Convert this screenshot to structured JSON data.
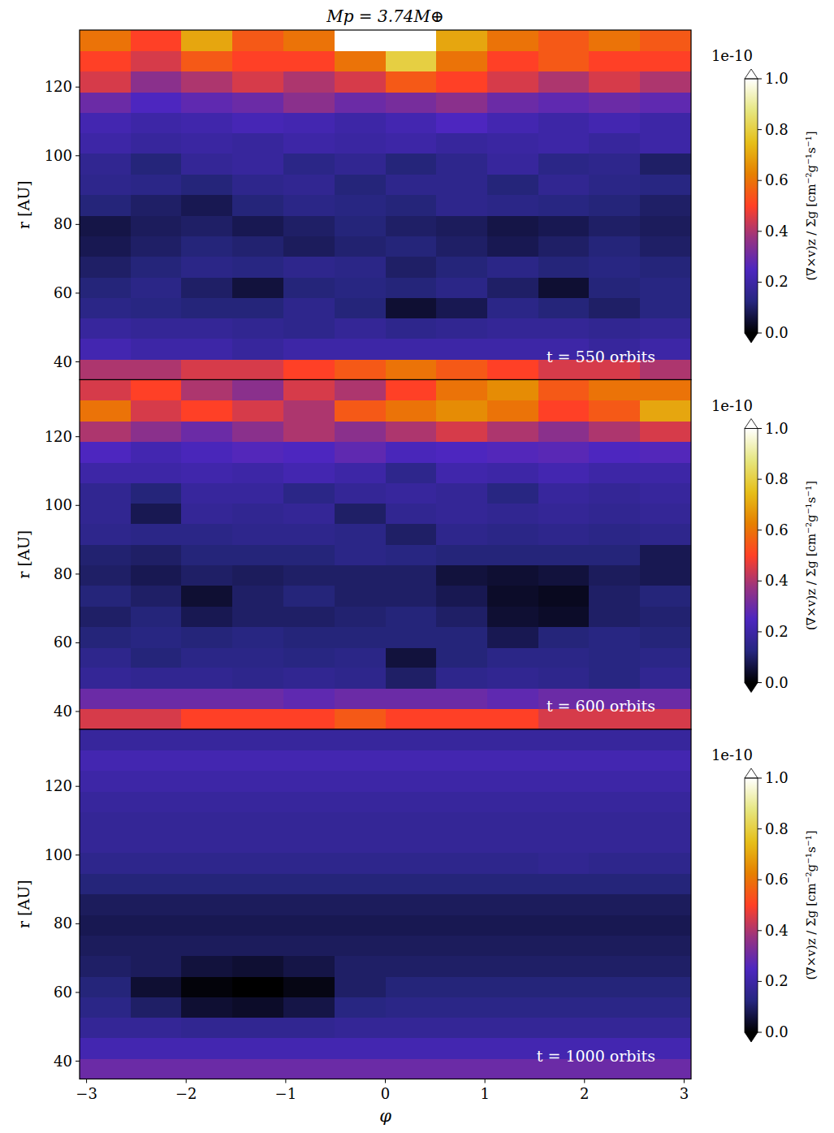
{
  "chart_data": [
    {
      "type": "heatmap",
      "title": "Mp = 3.74M⊕",
      "annotation": "t = 550 orbits",
      "y_label": "r [AU]",
      "tick_labels": "y",
      "xlim": [
        -3.07,
        3.07
      ],
      "ylim": [
        34.8,
        136.6
      ],
      "xticks": [
        -3,
        -2,
        -1,
        0,
        1,
        2,
        3
      ],
      "yticks": [
        40,
        60,
        80,
        100,
        120
      ],
      "x": [
        -2.814,
        -2.302,
        -1.791,
        -1.279,
        -0.768,
        -0.256,
        0.256,
        0.768,
        1.279,
        1.791,
        2.302,
        2.814
      ],
      "y": [
        37.8,
        43.8,
        49.8,
        55.8,
        61.7,
        67.7,
        73.7,
        79.7,
        85.7,
        91.7,
        97.7,
        103.7,
        109.7,
        115.6,
        121.6,
        127.6,
        133.6
      ],
      "cells": [
        [
          0.4,
          0.4,
          0.45,
          0.45,
          0.5,
          0.55,
          0.6,
          0.55,
          0.5,
          0.45,
          0.45,
          0.4
        ],
        [
          0.22,
          0.2,
          0.2,
          0.18,
          0.2,
          0.2,
          0.2,
          0.2,
          0.2,
          0.2,
          0.18,
          0.2
        ],
        [
          0.18,
          0.17,
          0.17,
          0.16,
          0.15,
          0.17,
          0.15,
          0.16,
          0.17,
          0.17,
          0.16,
          0.17
        ],
        [
          0.14,
          0.13,
          0.12,
          0.12,
          0.15,
          0.12,
          0.05,
          0.08,
          0.14,
          0.12,
          0.1,
          0.13
        ],
        [
          0.12,
          0.14,
          0.1,
          0.06,
          0.12,
          0.13,
          0.12,
          0.14,
          0.1,
          0.05,
          0.12,
          0.13
        ],
        [
          0.1,
          0.12,
          0.14,
          0.13,
          0.15,
          0.14,
          0.1,
          0.12,
          0.14,
          0.12,
          0.13,
          0.12
        ],
        [
          0.08,
          0.1,
          0.12,
          0.11,
          0.09,
          0.11,
          0.12,
          0.1,
          0.08,
          0.1,
          0.12,
          0.1
        ],
        [
          0.07,
          0.09,
          0.1,
          0.08,
          0.1,
          0.12,
          0.1,
          0.09,
          0.07,
          0.08,
          0.1,
          0.09
        ],
        [
          0.12,
          0.1,
          0.08,
          0.12,
          0.14,
          0.13,
          0.12,
          0.15,
          0.14,
          0.13,
          0.12,
          0.1
        ],
        [
          0.15,
          0.14,
          0.12,
          0.15,
          0.16,
          0.12,
          0.15,
          0.15,
          0.12,
          0.16,
          0.14,
          0.13
        ],
        [
          0.16,
          0.12,
          0.17,
          0.18,
          0.14,
          0.16,
          0.12,
          0.15,
          0.18,
          0.14,
          0.15,
          0.1
        ],
        [
          0.2,
          0.18,
          0.19,
          0.18,
          0.2,
          0.19,
          0.2,
          0.18,
          0.19,
          0.2,
          0.18,
          0.2
        ],
        [
          0.22,
          0.2,
          0.21,
          0.23,
          0.22,
          0.2,
          0.22,
          0.25,
          0.22,
          0.2,
          0.22,
          0.2
        ],
        [
          0.3,
          0.25,
          0.28,
          0.3,
          0.35,
          0.3,
          0.32,
          0.35,
          0.3,
          0.28,
          0.3,
          0.28
        ],
        [
          0.45,
          0.35,
          0.4,
          0.45,
          0.4,
          0.45,
          0.55,
          0.5,
          0.45,
          0.4,
          0.45,
          0.4
        ],
        [
          0.5,
          0.45,
          0.55,
          0.5,
          0.5,
          0.6,
          0.8,
          0.6,
          0.5,
          0.55,
          0.5,
          0.5
        ],
        [
          0.6,
          0.5,
          0.7,
          0.55,
          0.6,
          1.0,
          1.0,
          0.7,
          0.6,
          0.55,
          0.6,
          0.55
        ]
      ],
      "colorbar_range": [
        0,
        1
      ],
      "colorbar_ticks": [
        {
          "value": 0,
          "label": "0.0"
        },
        0.2,
        0.4,
        0.6,
        0.8,
        {
          "value": 1,
          "label": "1.0"
        }
      ],
      "colorbar_multiplier": "1e-10",
      "colorbar_label": "(∇×v)z / Σg [cm⁻²g⁻¹s⁻¹]"
    },
    {
      "type": "heatmap",
      "annotation": "t = 600 orbits",
      "y_label": "r [AU]",
      "tick_labels": "y",
      "xlim": [
        -3.07,
        3.07
      ],
      "ylim": [
        34.8,
        136.6
      ],
      "xticks": [
        -3,
        -2,
        -1,
        0,
        1,
        2,
        3
      ],
      "yticks": [
        40,
        60,
        80,
        100,
        120
      ],
      "x": [
        -2.814,
        -2.302,
        -1.791,
        -1.279,
        -0.768,
        -0.256,
        0.256,
        0.768,
        1.279,
        1.791,
        2.302,
        2.814
      ],
      "y": [
        37.8,
        43.8,
        49.8,
        55.8,
        61.7,
        67.7,
        73.7,
        79.7,
        85.7,
        91.7,
        97.7,
        103.7,
        109.7,
        115.6,
        121.6,
        127.6,
        133.6
      ],
      "cells": [
        [
          0.45,
          0.45,
          0.5,
          0.5,
          0.5,
          0.55,
          0.5,
          0.5,
          0.5,
          0.45,
          0.45,
          0.45
        ],
        [
          0.3,
          0.3,
          0.3,
          0.3,
          0.28,
          0.3,
          0.3,
          0.3,
          0.28,
          0.3,
          0.3,
          0.3
        ],
        [
          0.17,
          0.16,
          0.16,
          0.15,
          0.16,
          0.15,
          0.1,
          0.15,
          0.16,
          0.15,
          0.13,
          0.16
        ],
        [
          0.15,
          0.12,
          0.14,
          0.14,
          0.13,
          0.14,
          0.06,
          0.12,
          0.14,
          0.14,
          0.13,
          0.14
        ],
        [
          0.12,
          0.13,
          0.12,
          0.13,
          0.12,
          0.12,
          0.12,
          0.12,
          0.08,
          0.12,
          0.13,
          0.12
        ],
        [
          0.1,
          0.12,
          0.08,
          0.1,
          0.1,
          0.11,
          0.12,
          0.1,
          0.05,
          0.04,
          0.1,
          0.11
        ],
        [
          0.12,
          0.1,
          0.05,
          0.1,
          0.12,
          0.1,
          0.1,
          0.08,
          0.04,
          0.03,
          0.1,
          0.12
        ],
        [
          0.1,
          0.08,
          0.1,
          0.09,
          0.1,
          0.1,
          0.1,
          0.06,
          0.05,
          0.06,
          0.09,
          0.08
        ],
        [
          0.11,
          0.1,
          0.12,
          0.12,
          0.12,
          0.14,
          0.13,
          0.12,
          0.12,
          0.12,
          0.12,
          0.08
        ],
        [
          0.15,
          0.14,
          0.14,
          0.15,
          0.15,
          0.14,
          0.1,
          0.15,
          0.14,
          0.15,
          0.14,
          0.15
        ],
        [
          0.16,
          0.08,
          0.17,
          0.16,
          0.17,
          0.1,
          0.16,
          0.17,
          0.16,
          0.17,
          0.16,
          0.17
        ],
        [
          0.16,
          0.12,
          0.18,
          0.18,
          0.14,
          0.17,
          0.18,
          0.17,
          0.13,
          0.18,
          0.17,
          0.18
        ],
        [
          0.2,
          0.2,
          0.21,
          0.2,
          0.22,
          0.2,
          0.15,
          0.21,
          0.2,
          0.22,
          0.2,
          0.2
        ],
        [
          0.25,
          0.22,
          0.24,
          0.26,
          0.25,
          0.28,
          0.24,
          0.25,
          0.26,
          0.27,
          0.25,
          0.26
        ],
        [
          0.4,
          0.35,
          0.3,
          0.35,
          0.4,
          0.35,
          0.4,
          0.45,
          0.4,
          0.35,
          0.4,
          0.45
        ],
        [
          0.6,
          0.45,
          0.5,
          0.45,
          0.4,
          0.55,
          0.6,
          0.65,
          0.6,
          0.5,
          0.55,
          0.7
        ],
        [
          0.45,
          0.5,
          0.4,
          0.35,
          0.45,
          0.4,
          0.5,
          0.6,
          0.65,
          0.55,
          0.6,
          0.6
        ]
      ],
      "colorbar_range": [
        0,
        1
      ],
      "colorbar_ticks": [
        {
          "value": 0,
          "label": "0.0"
        },
        0.2,
        0.4,
        0.6,
        0.8,
        {
          "value": 1,
          "label": "1.0"
        }
      ],
      "colorbar_multiplier": "1e-10",
      "colorbar_label": "(∇×v)z / Σg [cm⁻²g⁻¹s⁻¹]"
    },
    {
      "type": "heatmap",
      "annotation": "t = 1000 orbits",
      "y_label": "r [AU]",
      "x_label": "φ",
      "tick_labels": true,
      "xlim": [
        -3.07,
        3.07
      ],
      "ylim": [
        34.8,
        136.6
      ],
      "xticks": [
        {
          "value": -3,
          "label": "−3"
        },
        {
          "value": -2,
          "label": "−2"
        },
        {
          "value": -1,
          "label": "−1"
        },
        0,
        1,
        2,
        3
      ],
      "yticks": [
        40,
        60,
        80,
        100,
        120
      ],
      "x": [
        -2.814,
        -2.302,
        -1.791,
        -1.279,
        -0.768,
        -0.256,
        0.256,
        0.768,
        1.279,
        1.791,
        2.302,
        2.814
      ],
      "y": [
        37.8,
        43.8,
        49.8,
        55.8,
        61.7,
        67.7,
        73.7,
        79.7,
        85.7,
        91.7,
        97.7,
        103.7,
        109.7,
        115.6,
        121.6,
        127.6,
        133.6
      ],
      "cells": [
        [
          0.3,
          0.3,
          0.3,
          0.3,
          0.3,
          0.3,
          0.3,
          0.3,
          0.3,
          0.3,
          0.3,
          0.3
        ],
        [
          0.22,
          0.22,
          0.22,
          0.22,
          0.22,
          0.22,
          0.22,
          0.22,
          0.22,
          0.22,
          0.22,
          0.22
        ],
        [
          0.17,
          0.17,
          0.16,
          0.16,
          0.16,
          0.17,
          0.17,
          0.17,
          0.17,
          0.17,
          0.17,
          0.17
        ],
        [
          0.14,
          0.1,
          0.05,
          0.04,
          0.07,
          0.13,
          0.14,
          0.14,
          0.14,
          0.14,
          0.14,
          0.14
        ],
        [
          0.12,
          0.05,
          0.01,
          0.0,
          0.02,
          0.1,
          0.12,
          0.12,
          0.12,
          0.12,
          0.12,
          0.12
        ],
        [
          0.1,
          0.09,
          0.06,
          0.05,
          0.07,
          0.1,
          0.1,
          0.1,
          0.1,
          0.1,
          0.1,
          0.1
        ],
        [
          0.09,
          0.09,
          0.09,
          0.09,
          0.09,
          0.09,
          0.09,
          0.09,
          0.09,
          0.09,
          0.09,
          0.09
        ],
        [
          0.08,
          0.08,
          0.08,
          0.08,
          0.08,
          0.08,
          0.08,
          0.08,
          0.08,
          0.08,
          0.08,
          0.08
        ],
        [
          0.09,
          0.09,
          0.09,
          0.09,
          0.09,
          0.09,
          0.09,
          0.09,
          0.09,
          0.09,
          0.09,
          0.09
        ],
        [
          0.12,
          0.12,
          0.12,
          0.12,
          0.12,
          0.12,
          0.12,
          0.12,
          0.12,
          0.12,
          0.12,
          0.12
        ],
        [
          0.15,
          0.15,
          0.15,
          0.15,
          0.15,
          0.15,
          0.15,
          0.15,
          0.15,
          0.16,
          0.15,
          0.15
        ],
        [
          0.17,
          0.17,
          0.17,
          0.17,
          0.17,
          0.17,
          0.17,
          0.17,
          0.17,
          0.17,
          0.17,
          0.17
        ],
        [
          0.17,
          0.17,
          0.17,
          0.17,
          0.17,
          0.17,
          0.17,
          0.17,
          0.17,
          0.17,
          0.17,
          0.17
        ],
        [
          0.18,
          0.18,
          0.18,
          0.18,
          0.18,
          0.18,
          0.18,
          0.18,
          0.18,
          0.18,
          0.18,
          0.18
        ],
        [
          0.2,
          0.2,
          0.2,
          0.2,
          0.2,
          0.2,
          0.2,
          0.2,
          0.2,
          0.2,
          0.2,
          0.2
        ],
        [
          0.22,
          0.22,
          0.22,
          0.22,
          0.22,
          0.22,
          0.22,
          0.22,
          0.22,
          0.22,
          0.22,
          0.22
        ],
        [
          0.18,
          0.18,
          0.18,
          0.18,
          0.18,
          0.18,
          0.18,
          0.18,
          0.18,
          0.18,
          0.18,
          0.18
        ]
      ],
      "colorbar_range": [
        0,
        1
      ],
      "colorbar_ticks": [
        {
          "value": 0,
          "label": "0.0"
        },
        0.2,
        0.4,
        0.6,
        0.8,
        {
          "value": 1,
          "label": "1.0"
        }
      ],
      "colorbar_multiplier": "1e-10",
      "colorbar_label": "(∇×v)z / Σg [cm⁻²g⁻¹s⁻¹]"
    }
  ]
}
